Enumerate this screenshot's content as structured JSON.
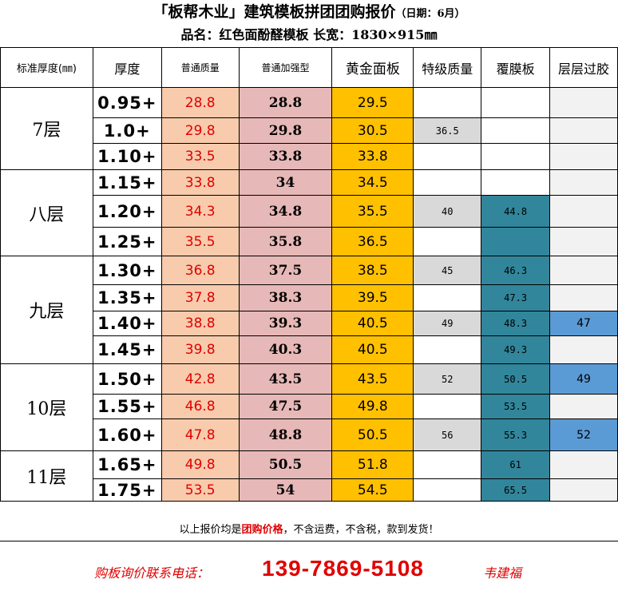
{
  "header": {
    "title": "「板帮木业」建筑模板拼团团购报价",
    "date_note": "（日期：6月）",
    "subtitle": "品名：红色面酚醛模板 长宽：1830×915㎜"
  },
  "table": {
    "headers": [
      "标准厚度(㎜)",
      "厚度",
      "普通质量",
      "普通加强型",
      "黄金面板",
      "特级质量",
      "覆膜板",
      "层层过胶"
    ],
    "groups": [
      {
        "label": "7层",
        "rows": [
          {
            "thickness": "0.95+",
            "pt": "28.8",
            "jq": "28.8",
            "hj": "29.5",
            "tj": "",
            "fm": "",
            "cc": ""
          },
          {
            "thickness": "1.0+",
            "pt": "29.8",
            "jq": "29.8",
            "hj": "30.5",
            "tj": "36.5",
            "fm": "",
            "cc": ""
          },
          {
            "thickness": "1.10+",
            "pt": "33.5",
            "jq": "33.8",
            "hj": "33.8",
            "tj": "",
            "fm": "",
            "cc": ""
          }
        ]
      },
      {
        "label": "八层",
        "rows": [
          {
            "thickness": "1.15+",
            "pt": "33.8",
            "jq": "34",
            "hj": "34.5",
            "tj": "",
            "fm": "",
            "cc": ""
          },
          {
            "thickness": "1.20+",
            "pt": "34.3",
            "jq": "34.8",
            "hj": "35.5",
            "tj": "40",
            "fm": "44.8",
            "cc": ""
          },
          {
            "thickness": "1.25+",
            "pt": "35.5",
            "jq": "35.8",
            "hj": "36.5",
            "tj": "",
            "fm": "",
            "cc": ""
          }
        ]
      },
      {
        "label": "九层",
        "rows": [
          {
            "thickness": "1.30+",
            "pt": "36.8",
            "jq": "37.5",
            "hj": "38.5",
            "tj": "45",
            "fm": "46.3",
            "cc": ""
          },
          {
            "thickness": "1.35+",
            "pt": "37.8",
            "jq": "38.3",
            "hj": "39.5",
            "tj": "",
            "fm": "47.3",
            "cc": ""
          },
          {
            "thickness": "1.40+",
            "pt": "38.8",
            "jq": "39.3",
            "hj": "40.5",
            "tj": "49",
            "fm": "48.3",
            "cc": "47"
          },
          {
            "thickness": "1.45+",
            "pt": "39.8",
            "jq": "40.3",
            "hj": "40.5",
            "tj": "",
            "fm": "49.3",
            "cc": ""
          }
        ]
      },
      {
        "label": "10层",
        "rows": [
          {
            "thickness": "1.50+",
            "pt": "42.8",
            "jq": "43.5",
            "hj": "43.5",
            "tj": "52",
            "fm": "50.5",
            "cc": "49"
          },
          {
            "thickness": "1.55+",
            "pt": "46.8",
            "jq": "47.5",
            "hj": "49.8",
            "tj": "",
            "fm": "53.5",
            "cc": ""
          },
          {
            "thickness": "1.60+",
            "pt": "47.8",
            "jq": "48.8",
            "hj": "50.5",
            "tj": "56",
            "fm": "55.3",
            "cc": "52"
          }
        ]
      },
      {
        "label": "11层",
        "rows": [
          {
            "thickness": "1.65+",
            "pt": "49.8",
            "jq": "50.5",
            "hj": "51.8",
            "tj": "",
            "fm": "61",
            "cc": ""
          },
          {
            "thickness": "1.75+",
            "pt": "53.5",
            "jq": "54",
            "hj": "54.5",
            "tj": "",
            "fm": "65.5",
            "cc": ""
          }
        ]
      }
    ]
  },
  "footer": {
    "note_prefix": "以上报价均是",
    "note_emphasis": "团购价格",
    "note_suffix": "，不含运费，不含税，款到发货！"
  },
  "contact": {
    "label": "购板询价联系电话：",
    "phone": "139-7869-5108",
    "name": "韦建福"
  },
  "colors": {
    "normal_quality": "#f8cbad",
    "reinforced": "#e6b8b7",
    "gold_panel": "#ffc000",
    "special_grade": "#d9d9d9",
    "film_faced": "#31869b",
    "glued": "#f2f2f2",
    "glued_highlight": "#5b9bd5",
    "price_red": "#e00000"
  }
}
